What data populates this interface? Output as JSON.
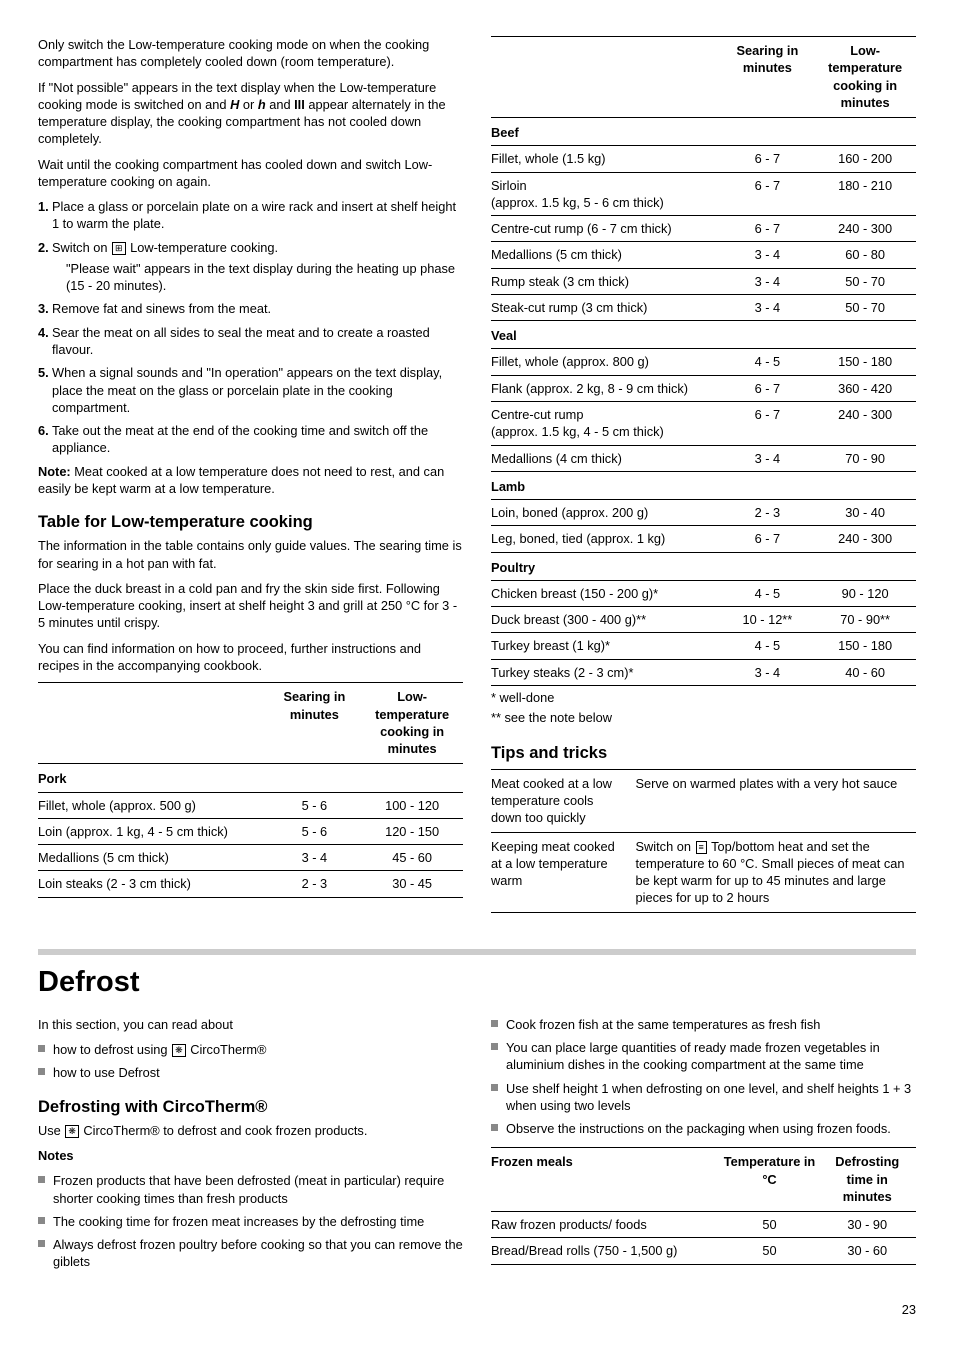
{
  "intro": {
    "p1": "Only switch the Low-temperature cooking mode on when the cooking compartment has completely cooled down (room temperature).",
    "p2a": "If \"Not possible\" appears in the text display when the Low-temperature cooking mode is switched on and ",
    "p2_Hs": "H",
    "p2_or": " or ",
    "p2_hs": "h",
    "p2_and": " and ",
    "p2_III": "III",
    "p2b": " appear alternately in the temperature display, the cooking compartment has not cooled down completely.",
    "p3": "Wait until the cooking compartment has cooled down and switch Low-temperature cooking on again."
  },
  "steps": [
    {
      "n": "1.",
      "t": "Place a glass or porcelain plate on a wire rack and insert at shelf height 1 to warm the plate."
    },
    {
      "n": "2.",
      "t": "Switch on ",
      "icon": "⊞",
      "t2": " Low-temperature cooking.",
      "sub": "\"Please wait\" appears in the text display during the heating up phase (15 - 20 minutes)."
    },
    {
      "n": "3.",
      "t": "Remove fat and sinews from the meat."
    },
    {
      "n": "4.",
      "t": "Sear the meat on all sides to seal the meat and to create a roasted flavour."
    },
    {
      "n": "5.",
      "t": "When a signal sounds and \"In operation\" appears on the text display, place the meat on the glass or porcelain plate in the cooking compartment."
    },
    {
      "n": "6.",
      "t": "Take out the meat at the end of the cooking time and switch off the appliance."
    }
  ],
  "note_lead": "Note: ",
  "note_body": "Meat cooked at a low temperature does not need to rest, and can easily be kept warm at a low temperature.",
  "table_heading": "Table for Low-temperature cooking",
  "table_p1": "The information in the table contains only guide values. The searing time is for searing in a hot pan with fat.",
  "table_p2": "Place the duck breast in a cold pan and fry the skin side first. Following Low-temperature cooking, insert at shelf height 3 and grill at 250 °C for 3 - 5 minutes until crispy.",
  "table_p3": "You can find information on how to proceed, further instructions and recipes in the accompanying cookbook.",
  "thead": {
    "c1": "",
    "c2": "Searing in minutes",
    "c3": "Low-temperature cooking in minutes"
  },
  "tbl_left": [
    {
      "type": "grp",
      "c1": "Pork"
    },
    {
      "c1": "Fillet, whole (approx. 500 g)",
      "c2": "5 - 6",
      "c3": "100 - 120"
    },
    {
      "c1": "Loin (approx. 1 kg, 4 - 5 cm thick)",
      "c2": "5 - 6",
      "c3": "120 - 150"
    },
    {
      "c1": "Medallions (5 cm thick)",
      "c2": "3 - 4",
      "c3": "45 - 60"
    },
    {
      "c1": "Loin steaks (2 - 3 cm thick)",
      "c2": "2 - 3",
      "c3": "30 - 45"
    }
  ],
  "tbl_right": [
    {
      "type": "grp",
      "c1": "Beef"
    },
    {
      "c1": "Fillet, whole (1.5 kg)",
      "c2": "6 - 7",
      "c3": "160 - 200"
    },
    {
      "c1": "Sirloin\n(approx. 1.5 kg, 5 - 6 cm thick)",
      "c2": "6 - 7",
      "c3": "180 - 210"
    },
    {
      "c1": "Centre-cut rump (6 - 7 cm thick)",
      "c2": "6 - 7",
      "c3": "240 - 300"
    },
    {
      "c1": "Medallions (5 cm thick)",
      "c2": "3 - 4",
      "c3": "60 - 80"
    },
    {
      "c1": "Rump steak (3 cm thick)",
      "c2": "3 - 4",
      "c3": "50 - 70"
    },
    {
      "c1": "Steak-cut rump (3 cm thick)",
      "c2": "3 - 4",
      "c3": "50 - 70"
    },
    {
      "type": "grp",
      "c1": "Veal"
    },
    {
      "c1": "Fillet, whole (approx. 800 g)",
      "c2": "4 - 5",
      "c3": "150 - 180"
    },
    {
      "c1": "Flank (approx. 2 kg, 8 - 9 cm thick)",
      "c2": "6 - 7",
      "c3": "360 - 420"
    },
    {
      "c1": "Centre-cut rump\n(approx. 1.5 kg, 4 - 5 cm thick)",
      "c2": "6 - 7",
      "c3": "240 - 300"
    },
    {
      "c1": "Medallions (4 cm thick)",
      "c2": "3 - 4",
      "c3": "70 - 90"
    },
    {
      "type": "grp",
      "c1": "Lamb"
    },
    {
      "c1": "Loin, boned (approx. 200 g)",
      "c2": "2 - 3",
      "c3": "30 - 40"
    },
    {
      "c1": "Leg, boned, tied (approx. 1 kg)",
      "c2": "6 - 7",
      "c3": "240 - 300"
    },
    {
      "type": "grp",
      "c1": "Poultry"
    },
    {
      "c1": "Chicken breast (150 - 200 g)*",
      "c2": "4 - 5",
      "c3": "90 - 120"
    },
    {
      "c1": "Duck breast (300 - 400 g)**",
      "c2": "10 - 12**",
      "c3": "70 - 90**"
    },
    {
      "c1": "Turkey breast (1 kg)*",
      "c2": "4 - 5",
      "c3": "150 - 180"
    },
    {
      "c1": "Turkey steaks (2 - 3 cm)*",
      "c2": "3 - 4",
      "c3": "40 - 60"
    }
  ],
  "foot1": "* well-done",
  "foot2": "** see the note below",
  "tips_heading": "Tips and tricks",
  "tips": [
    {
      "t1": "Meat cooked at a low temperature cools down too quickly",
      "t2": "Serve on warmed plates with a very hot sauce"
    },
    {
      "t1": "Keeping meat cooked at a low temperature warm",
      "t2a": "Switch on ",
      "icon": "≡",
      "t2b": " Top/bottom heat and set the temperature to 60 °C. Small pieces of meat can be kept warm for up to 45 minutes and large pieces for up to 2 hours"
    }
  ],
  "defrost": {
    "chapter": "Defrost",
    "intro": "In this section, you can read about",
    "bul_l": [
      {
        "pre": "how to defrost using ",
        "icon": "❋",
        "post": " CircoTherm®"
      },
      {
        "pre": "how to use Defrost"
      }
    ],
    "heading": "Defrosting with CircoTherm®",
    "usea": "Use ",
    "icon": "❋",
    "useb": " CircoTherm® to defrost and cook frozen products.",
    "notes_label": "Notes",
    "bul_notes_l": [
      "Frozen products that have been defrosted (meat in particular) require shorter cooking times than fresh products",
      "The cooking time for frozen meat increases by the defrosting time",
      "Always defrost frozen poultry before cooking so that you can remove the giblets"
    ],
    "bul_notes_r": [
      "Cook frozen fish at the same temperatures as fresh fish",
      "You can place large quantities of ready made frozen vegetables in aluminium dishes in the cooking compartment at the same time",
      "Use shelf height 1 when defrosting on one level, and shelf heights 1 + 3 when using two levels",
      "Observe the instructions on the packaging when using frozen foods."
    ],
    "thead": {
      "c1": "Frozen meals",
      "c2": "Temperature in °C",
      "c3": "Defrosting time in minutes"
    },
    "rows": [
      {
        "c1": "Raw frozen products/ foods",
        "c2": "50",
        "c3": "30 - 90"
      },
      {
        "c1": "Bread/Bread rolls (750 - 1,500 g)",
        "c2": "50",
        "c3": "30 - 60"
      }
    ]
  },
  "page": "23"
}
